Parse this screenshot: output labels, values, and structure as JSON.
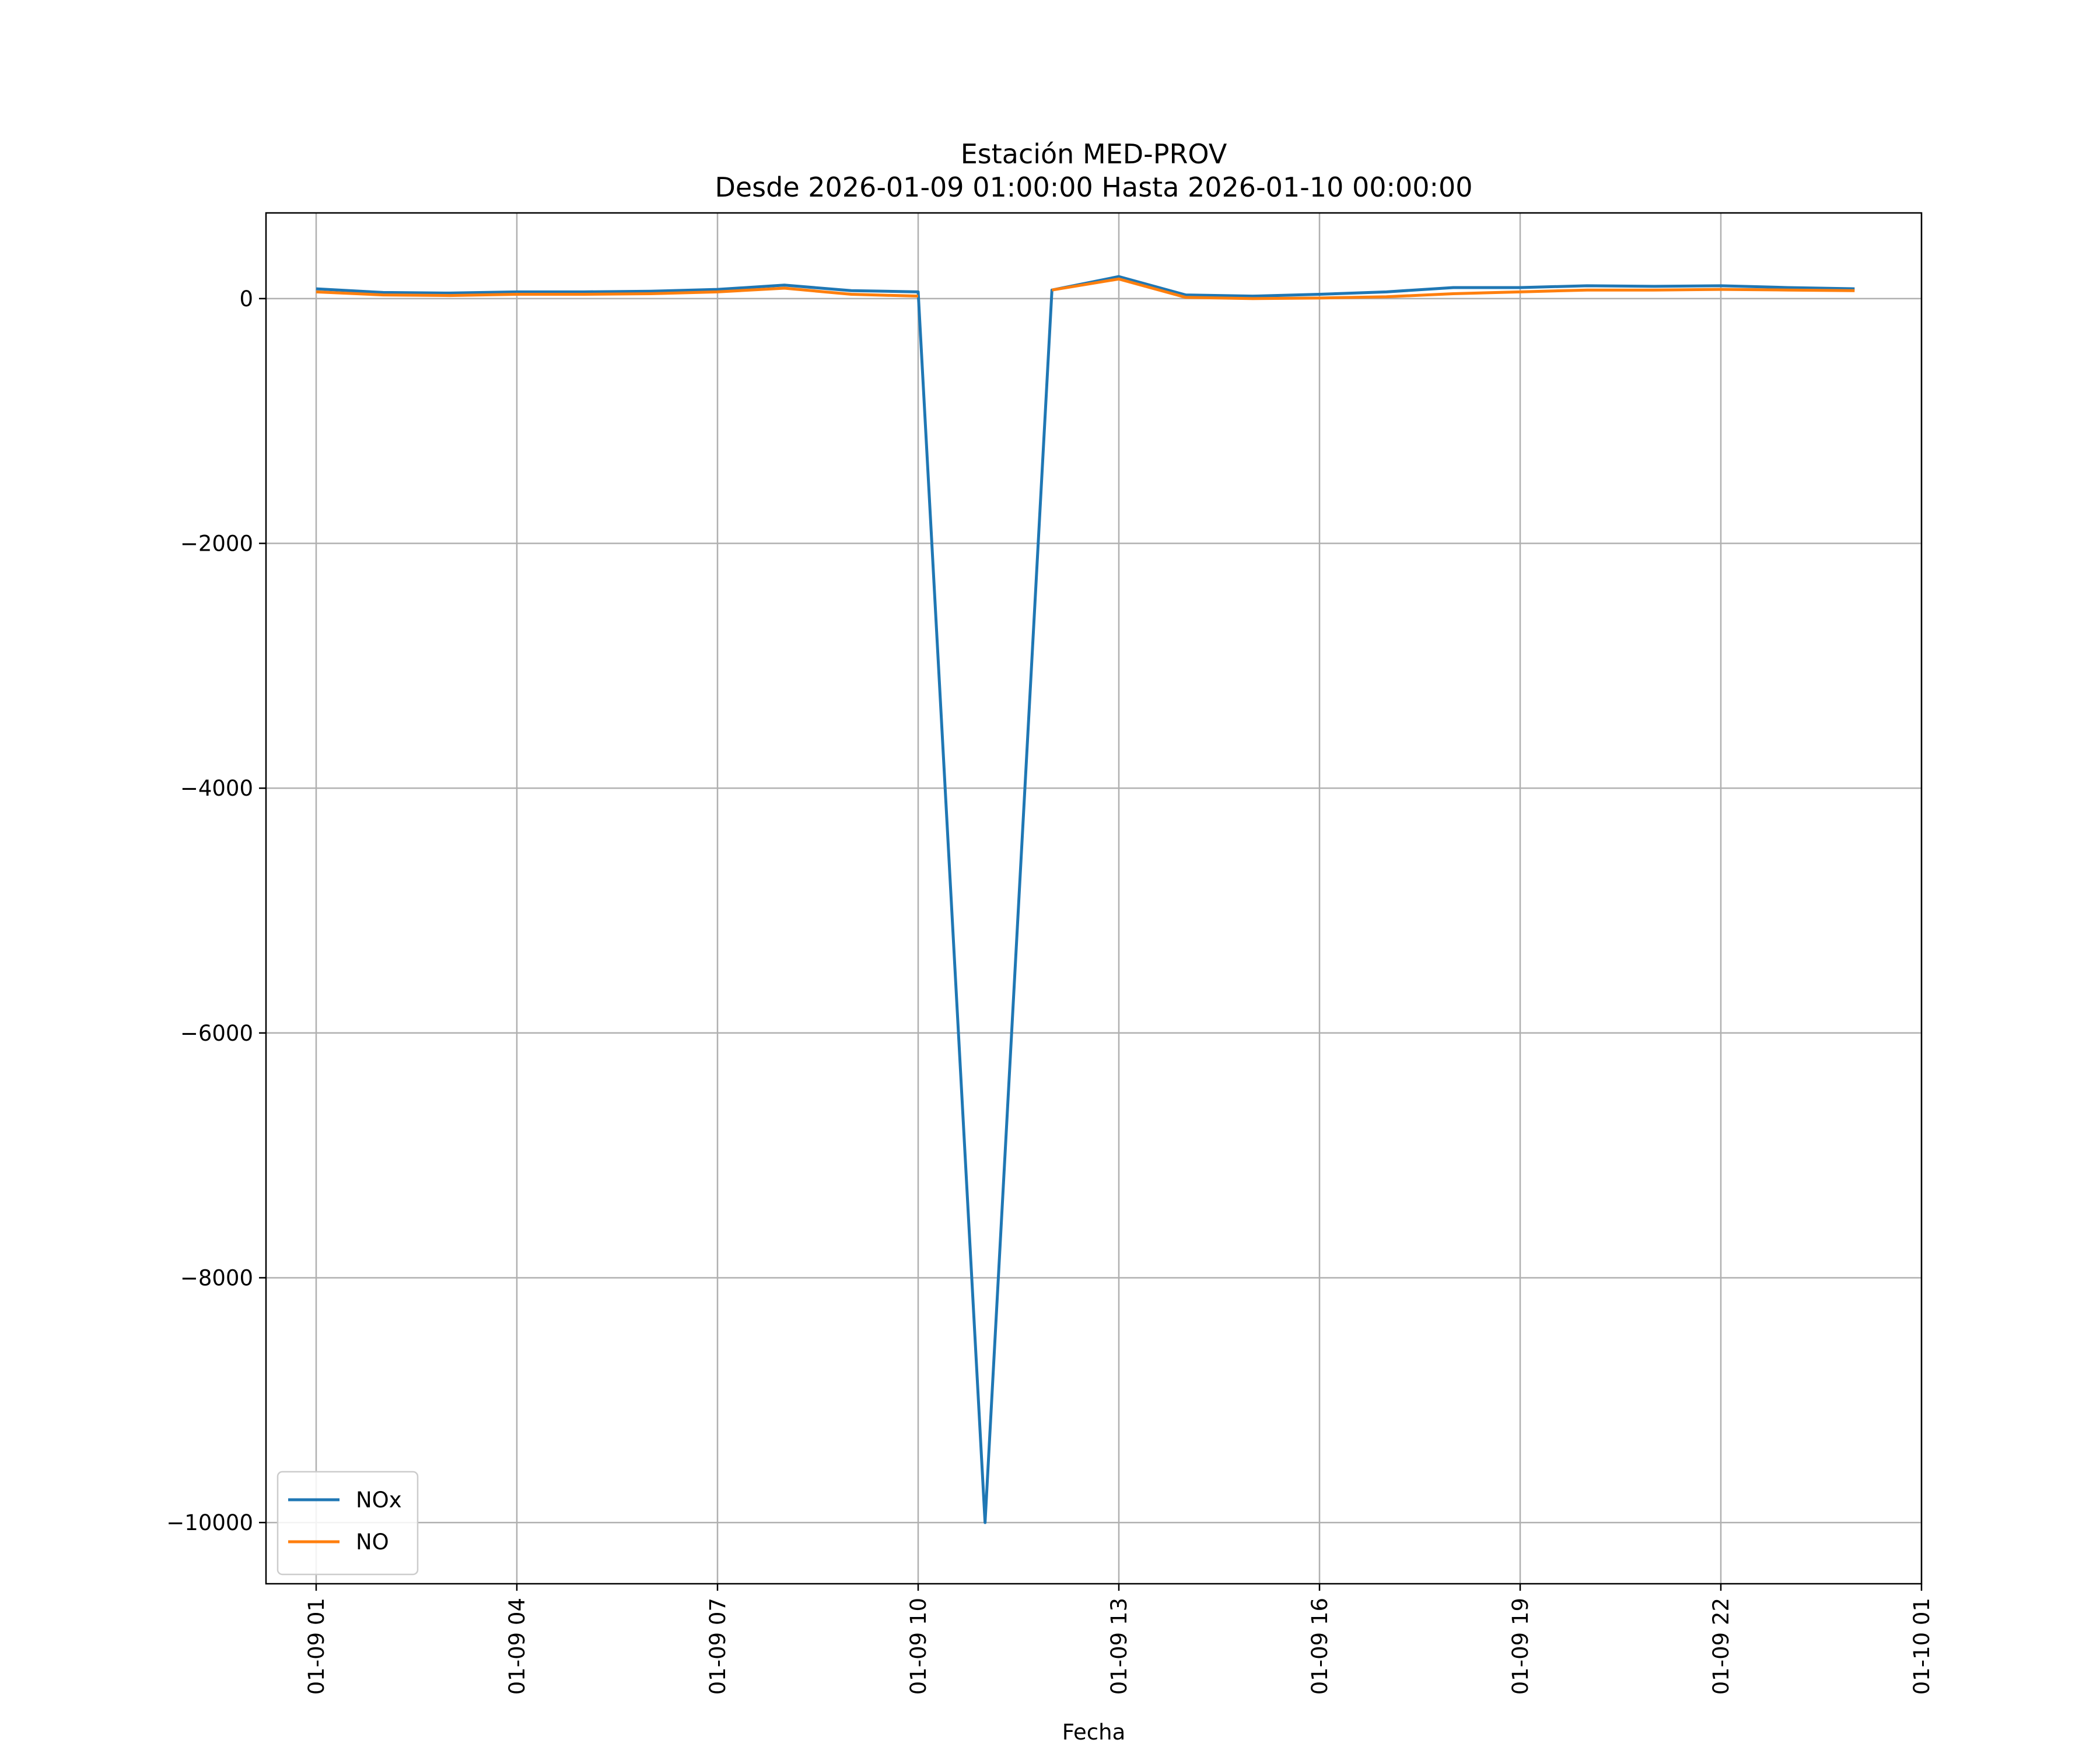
{
  "chart_data": {
    "type": "line",
    "title": "Estación MED-PROV",
    "subtitle": "Desde 2026-01-09 01:00:00 Hasta 2026-01-10 00:00:00",
    "xlabel": "Fecha",
    "ylabel": "",
    "x_type": "datetime",
    "xlim": [
      "2026-01-09 00:15",
      "2026-01-10 01:00"
    ],
    "ylim": [
      -10500,
      700
    ],
    "x_ticks": [
      {
        "value": "2026-01-09 01:00",
        "label": "01-09 01"
      },
      {
        "value": "2026-01-09 04:00",
        "label": "01-09 04"
      },
      {
        "value": "2026-01-09 07:00",
        "label": "01-09 07"
      },
      {
        "value": "2026-01-09 10:00",
        "label": "01-09 10"
      },
      {
        "value": "2026-01-09 13:00",
        "label": "01-09 13"
      },
      {
        "value": "2026-01-09 16:00",
        "label": "01-09 16"
      },
      {
        "value": "2026-01-09 19:00",
        "label": "01-09 19"
      },
      {
        "value": "2026-01-09 22:00",
        "label": "01-09 22"
      },
      {
        "value": "2026-01-10 01:00",
        "label": "01-10 01"
      }
    ],
    "y_ticks": [
      {
        "value": 0,
        "label": "0"
      },
      {
        "value": -2000,
        "label": "−2000"
      },
      {
        "value": -4000,
        "label": "−4000"
      },
      {
        "value": -6000,
        "label": "−6000"
      },
      {
        "value": -8000,
        "label": "−8000"
      },
      {
        "value": -10000,
        "label": "−10000"
      }
    ],
    "grid": true,
    "legend": {
      "placement": "lower-left"
    },
    "x": [
      "2026-01-09 01:00",
      "2026-01-09 02:00",
      "2026-01-09 03:00",
      "2026-01-09 04:00",
      "2026-01-09 05:00",
      "2026-01-09 06:00",
      "2026-01-09 07:00",
      "2026-01-09 08:00",
      "2026-01-09 09:00",
      "2026-01-09 10:00",
      "2026-01-09 11:00",
      "2026-01-09 12:00",
      "2026-01-09 13:00",
      "2026-01-09 14:00",
      "2026-01-09 15:00",
      "2026-01-09 16:00",
      "2026-01-09 17:00",
      "2026-01-09 18:00",
      "2026-01-09 19:00",
      "2026-01-09 20:00",
      "2026-01-09 21:00",
      "2026-01-09 22:00",
      "2026-01-09 23:00",
      "2026-01-10 00:00"
    ],
    "series": [
      {
        "name": "NOx",
        "color": "#1f77b4",
        "values": [
          80,
          50,
          45,
          55,
          55,
          60,
          75,
          110,
          65,
          55,
          -10000,
          70,
          180,
          30,
          20,
          35,
          55,
          90,
          90,
          105,
          100,
          105,
          90,
          80
        ]
      },
      {
        "name": "NO",
        "color": "#ff7f0e",
        "values": [
          55,
          30,
          25,
          35,
          35,
          40,
          55,
          85,
          35,
          20,
          null,
          70,
          160,
          10,
          0,
          5,
          15,
          40,
          55,
          70,
          70,
          75,
          70,
          65
        ]
      }
    ]
  }
}
